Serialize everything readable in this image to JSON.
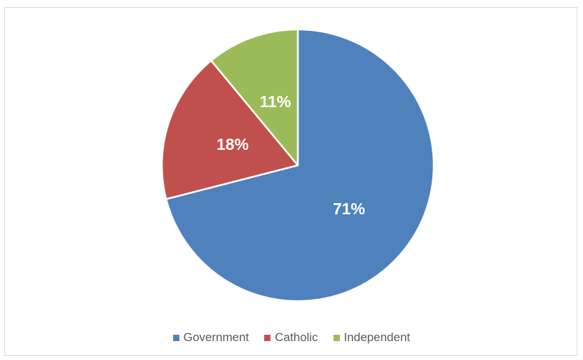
{
  "chart_data": {
    "type": "pie",
    "start_angle": "12 o'clock, clockwise",
    "legend_position": "bottom",
    "slices": [
      {
        "label": "Government",
        "value": 71,
        "display": "71%",
        "color": "#4f81bd"
      },
      {
        "label": "Catholic",
        "value": 18,
        "display": "18%",
        "color": "#c0504d"
      },
      {
        "label": "Independent",
        "value": 11,
        "display": "11%",
        "color": "#9bbb59"
      }
    ]
  }
}
